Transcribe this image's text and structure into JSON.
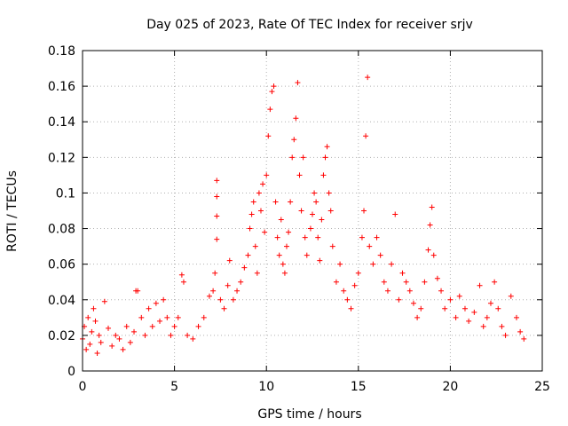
{
  "chart_data": {
    "type": "scatter",
    "title": "Day 025 of 2023, Rate Of TEC Index for receiver srjv",
    "xlabel": "GPS time / hours",
    "ylabel": "ROTI / TECUs",
    "xlim": [
      0,
      25
    ],
    "ylim": [
      0,
      0.18
    ],
    "xticks": [
      "0",
      "5",
      "10",
      "15",
      "20",
      "25"
    ],
    "yticks": [
      "0",
      "0.02",
      "0.04",
      "0.06",
      "0.08",
      "0.1",
      "0.12",
      "0.14",
      "0.16",
      "0.18"
    ],
    "grid": true,
    "marker": "+",
    "color": "#ff0000",
    "series": [
      {
        "points": [
          [
            0.0,
            0.018
          ],
          [
            0.1,
            0.025
          ],
          [
            0.2,
            0.012
          ],
          [
            0.3,
            0.03
          ],
          [
            0.4,
            0.015
          ],
          [
            0.5,
            0.022
          ],
          [
            0.6,
            0.035
          ],
          [
            0.7,
            0.028
          ],
          [
            0.8,
            0.01
          ],
          [
            0.9,
            0.02
          ],
          [
            1.0,
            0.016
          ],
          [
            1.2,
            0.039
          ],
          [
            1.4,
            0.024
          ],
          [
            1.6,
            0.014
          ],
          [
            1.8,
            0.02
          ],
          [
            2.0,
            0.018
          ],
          [
            2.2,
            0.012
          ],
          [
            2.4,
            0.025
          ],
          [
            2.6,
            0.016
          ],
          [
            2.8,
            0.022
          ],
          [
            2.9,
            0.045
          ],
          [
            3.0,
            0.045
          ],
          [
            3.2,
            0.03
          ],
          [
            3.4,
            0.02
          ],
          [
            3.6,
            0.035
          ],
          [
            3.8,
            0.025
          ],
          [
            4.0,
            0.038
          ],
          [
            4.2,
            0.028
          ],
          [
            4.4,
            0.04
          ],
          [
            4.6,
            0.03
          ],
          [
            4.8,
            0.02
          ],
          [
            5.0,
            0.025
          ],
          [
            5.2,
            0.03
          ],
          [
            5.4,
            0.054
          ],
          [
            5.5,
            0.05
          ],
          [
            5.7,
            0.02
          ],
          [
            6.0,
            0.018
          ],
          [
            6.3,
            0.025
          ],
          [
            6.6,
            0.03
          ],
          [
            6.9,
            0.042
          ],
          [
            7.1,
            0.045
          ],
          [
            7.2,
            0.055
          ],
          [
            7.3,
            0.074
          ],
          [
            7.3,
            0.087
          ],
          [
            7.3,
            0.098
          ],
          [
            7.3,
            0.107
          ],
          [
            7.5,
            0.04
          ],
          [
            7.7,
            0.035
          ],
          [
            7.9,
            0.048
          ],
          [
            8.0,
            0.062
          ],
          [
            8.2,
            0.04
          ],
          [
            8.4,
            0.045
          ],
          [
            8.6,
            0.05
          ],
          [
            8.8,
            0.058
          ],
          [
            9.0,
            0.065
          ],
          [
            9.1,
            0.08
          ],
          [
            9.2,
            0.088
          ],
          [
            9.3,
            0.095
          ],
          [
            9.4,
            0.07
          ],
          [
            9.5,
            0.055
          ],
          [
            9.6,
            0.1
          ],
          [
            9.7,
            0.09
          ],
          [
            9.8,
            0.105
          ],
          [
            9.9,
            0.078
          ],
          [
            10.0,
            0.11
          ],
          [
            10.1,
            0.132
          ],
          [
            10.2,
            0.147
          ],
          [
            10.3,
            0.157
          ],
          [
            10.4,
            0.16
          ],
          [
            10.5,
            0.095
          ],
          [
            10.6,
            0.075
          ],
          [
            10.7,
            0.065
          ],
          [
            10.8,
            0.085
          ],
          [
            10.9,
            0.06
          ],
          [
            11.0,
            0.055
          ],
          [
            11.1,
            0.07
          ],
          [
            11.2,
            0.078
          ],
          [
            11.3,
            0.095
          ],
          [
            11.4,
            0.12
          ],
          [
            11.5,
            0.13
          ],
          [
            11.6,
            0.142
          ],
          [
            11.7,
            0.162
          ],
          [
            11.8,
            0.11
          ],
          [
            11.9,
            0.09
          ],
          [
            12.0,
            0.12
          ],
          [
            12.1,
            0.075
          ],
          [
            12.2,
            0.065
          ],
          [
            12.4,
            0.08
          ],
          [
            12.5,
            0.088
          ],
          [
            12.6,
            0.1
          ],
          [
            12.7,
            0.095
          ],
          [
            12.8,
            0.075
          ],
          [
            12.9,
            0.062
          ],
          [
            13.0,
            0.085
          ],
          [
            13.1,
            0.11
          ],
          [
            13.2,
            0.12
          ],
          [
            13.3,
            0.126
          ],
          [
            13.4,
            0.1
          ],
          [
            13.5,
            0.09
          ],
          [
            13.6,
            0.07
          ],
          [
            13.8,
            0.05
          ],
          [
            14.0,
            0.06
          ],
          [
            14.2,
            0.045
          ],
          [
            14.4,
            0.04
          ],
          [
            14.6,
            0.035
          ],
          [
            14.8,
            0.048
          ],
          [
            15.0,
            0.055
          ],
          [
            15.2,
            0.075
          ],
          [
            15.3,
            0.09
          ],
          [
            15.4,
            0.132
          ],
          [
            15.5,
            0.165
          ],
          [
            15.6,
            0.07
          ],
          [
            15.8,
            0.06
          ],
          [
            16.0,
            0.075
          ],
          [
            16.2,
            0.065
          ],
          [
            16.4,
            0.05
          ],
          [
            16.6,
            0.045
          ],
          [
            16.8,
            0.06
          ],
          [
            17.0,
            0.088
          ],
          [
            17.2,
            0.04
          ],
          [
            17.4,
            0.055
          ],
          [
            17.6,
            0.05
          ],
          [
            17.8,
            0.045
          ],
          [
            18.0,
            0.038
          ],
          [
            18.2,
            0.03
          ],
          [
            18.4,
            0.035
          ],
          [
            18.6,
            0.05
          ],
          [
            18.8,
            0.068
          ],
          [
            18.9,
            0.082
          ],
          [
            19.0,
            0.092
          ],
          [
            19.1,
            0.065
          ],
          [
            19.3,
            0.052
          ],
          [
            19.5,
            0.045
          ],
          [
            19.7,
            0.035
          ],
          [
            20.0,
            0.04
          ],
          [
            20.3,
            0.03
          ],
          [
            20.5,
            0.042
          ],
          [
            20.8,
            0.035
          ],
          [
            21.0,
            0.028
          ],
          [
            21.3,
            0.033
          ],
          [
            21.6,
            0.048
          ],
          [
            21.8,
            0.025
          ],
          [
            22.0,
            0.03
          ],
          [
            22.2,
            0.038
          ],
          [
            22.4,
            0.05
          ],
          [
            22.6,
            0.035
          ],
          [
            22.8,
            0.025
          ],
          [
            23.0,
            0.02
          ],
          [
            23.3,
            0.042
          ],
          [
            23.6,
            0.03
          ],
          [
            23.8,
            0.022
          ],
          [
            24.0,
            0.018
          ]
        ]
      }
    ]
  }
}
